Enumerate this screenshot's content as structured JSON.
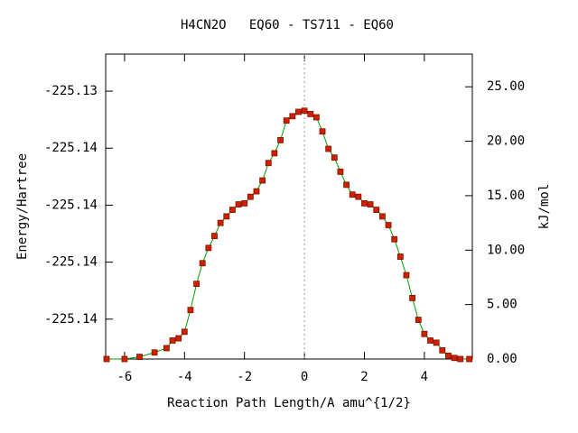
{
  "chart_data": {
    "type": "line",
    "title": "H4CN2O   EQ60 - TS711 - EQ60",
    "xlabel": "Reaction Path Length/A amu^{1/2}",
    "ylabel": "Energy/Hartree",
    "y2label": "kJ/mol",
    "xlim": [
      -6.63,
      5.6
    ],
    "xticks": [
      -6,
      -4,
      -2,
      0,
      2,
      4
    ],
    "ylim": [
      -225.1434,
      -225.1327
    ],
    "yticks": [
      {
        "value": -225.134,
        "label": "-225.13"
      },
      {
        "value": -225.136,
        "label": "-225.14"
      },
      {
        "value": -225.138,
        "label": "-225.14"
      },
      {
        "value": -225.14,
        "label": "-225.14"
      },
      {
        "value": -225.142,
        "label": "-225.14"
      }
    ],
    "y2lim": [
      0,
      28
    ],
    "y2ticks": [
      {
        "value": 0,
        "label": "0.00"
      },
      {
        "value": 5,
        "label": "5.00"
      },
      {
        "value": 10,
        "label": "10.00"
      },
      {
        "value": 15,
        "label": "15.00"
      },
      {
        "value": 20,
        "label": "20.00"
      },
      {
        "value": 25,
        "label": "25.00"
      }
    ],
    "grid": false,
    "x": [
      -6.6,
      -6.0,
      -5.5,
      -5.0,
      -4.6,
      -4.4,
      -4.2,
      -4.0,
      -3.8,
      -3.6,
      -3.4,
      -3.2,
      -3.0,
      -2.8,
      -2.6,
      -2.4,
      -2.2,
      -2.0,
      -1.8,
      -1.6,
      -1.4,
      -1.2,
      -1.0,
      -0.8,
      -0.6,
      -0.4,
      -0.2,
      0.0,
      0.2,
      0.4,
      0.6,
      0.8,
      1.0,
      1.2,
      1.4,
      1.6,
      1.8,
      2.0,
      2.2,
      2.4,
      2.6,
      2.8,
      3.0,
      3.2,
      3.4,
      3.6,
      3.8,
      4.0,
      4.2,
      4.4,
      4.6,
      4.8,
      5.0,
      5.2,
      5.5
    ],
    "series": [
      {
        "color": "#cc2200",
        "line_color": "#00a000",
        "axis": "y2",
        "values": [
          0,
          0,
          0.2,
          0.6,
          1.0,
          1.7,
          1.9,
          2.5,
          4.5,
          6.9,
          8.8,
          10.2,
          11.3,
          12.5,
          13.1,
          13.7,
          14.2,
          14.3,
          14.9,
          15.4,
          16.4,
          18.0,
          18.9,
          20.1,
          21.9,
          22.3,
          22.7,
          22.8,
          22.5,
          22.2,
          20.9,
          19.3,
          18.5,
          17.2,
          16.0,
          15.1,
          14.9,
          14.3,
          14.2,
          13.7,
          13.1,
          12.3,
          11.0,
          9.4,
          7.7,
          5.6,
          3.6,
          2.3,
          1.7,
          1.5,
          0.8,
          0.3,
          0.1,
          0,
          0
        ]
      }
    ]
  }
}
